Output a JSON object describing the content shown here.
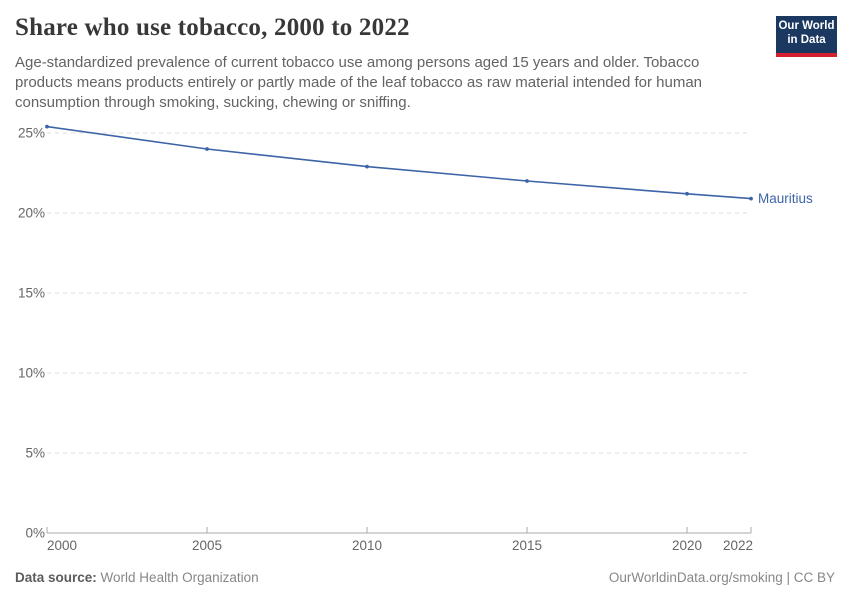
{
  "header": {
    "title": "Share who use tobacco, 2000 to 2022",
    "subtitle": "Age-standardized prevalence of current tobacco use among persons aged 15 years and older. Tobacco products means products entirely or partly made of the leaf tobacco as raw material intended for human consumption through smoking, sucking, chewing or sniffing.",
    "logo_line1": "Our World",
    "logo_line2": "in Data"
  },
  "chart_data": {
    "type": "line",
    "title": "Share who use tobacco, 2000 to 2022",
    "unit": "%",
    "x": [
      2000,
      2005,
      2010,
      2015,
      2020,
      2022
    ],
    "series": [
      {
        "name": "Mauritius",
        "color": "#3d64a8",
        "values": [
          25.4,
          24.0,
          22.9,
          22.0,
          21.2,
          20.9
        ]
      }
    ],
    "x_ticks": [
      {
        "value": 2000,
        "label": "2000"
      },
      {
        "value": 2005,
        "label": "2005"
      },
      {
        "value": 2010,
        "label": "2010"
      },
      {
        "value": 2015,
        "label": "2015"
      },
      {
        "value": 2020,
        "label": "2020"
      },
      {
        "value": 2022,
        "label": "2022"
      }
    ],
    "y_ticks": [
      {
        "value": 0,
        "label": "0%"
      },
      {
        "value": 5,
        "label": "5%"
      },
      {
        "value": 10,
        "label": "10%"
      },
      {
        "value": 15,
        "label": "15%"
      },
      {
        "value": 20,
        "label": "20%"
      },
      {
        "value": 25,
        "label": "25%"
      }
    ],
    "xlim": [
      2000,
      2022
    ],
    "ylim": [
      0,
      26
    ],
    "grid": "horizontal-dashed",
    "legend_position": "end-of-line-label"
  },
  "footer": {
    "source_label": "Data source:",
    "source_value": "World Health Organization",
    "credit": "OurWorldinData.org/smoking | CC BY"
  },
  "colors": {
    "line": "#3d64a8",
    "grid": "#dedede",
    "axis": "#a8a8a8",
    "tick_label": "#666666",
    "title": "#383838",
    "subtitle": "#636363",
    "logo_bg": "#1a3860",
    "logo_red": "#d4212d"
  }
}
